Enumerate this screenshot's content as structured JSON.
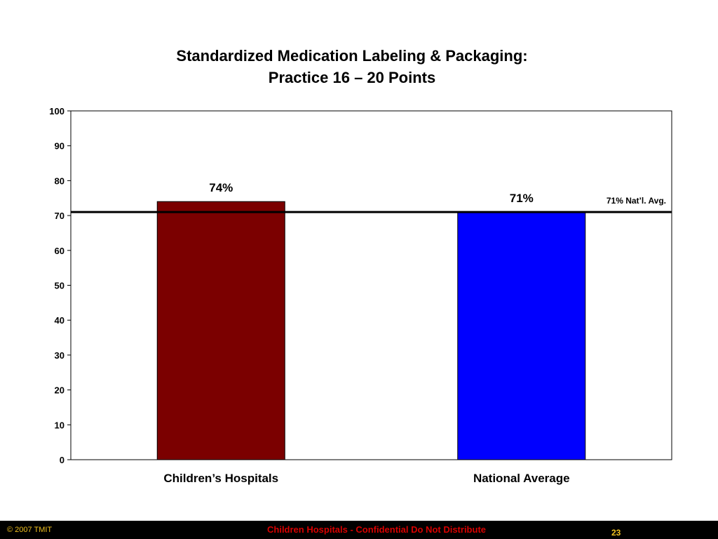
{
  "slide": {
    "title_line1": "Standardized Medication Labeling & Packaging:",
    "title_line2": "Practice 16 – 20 Points"
  },
  "chart_data": {
    "type": "bar",
    "categories": [
      "Children’s Hospitals",
      "National Average"
    ],
    "values": [
      74,
      71
    ],
    "data_labels": [
      "74%",
      "71%"
    ],
    "colors": [
      "#7b0000",
      "#0000ff"
    ],
    "ylim": [
      0,
      100
    ],
    "yticks": [
      0,
      10,
      20,
      30,
      40,
      50,
      60,
      70,
      80,
      90,
      100
    ],
    "reference_line": {
      "value": 71,
      "label": "71% Nat’l. Avg."
    },
    "xlabel": "",
    "ylabel": "",
    "grid": false
  },
  "footer": {
    "copyright": "© 2007 TMIT",
    "confidential": "Children Hospitals - Confidential Do Not Distribute",
    "page_number": "23"
  }
}
